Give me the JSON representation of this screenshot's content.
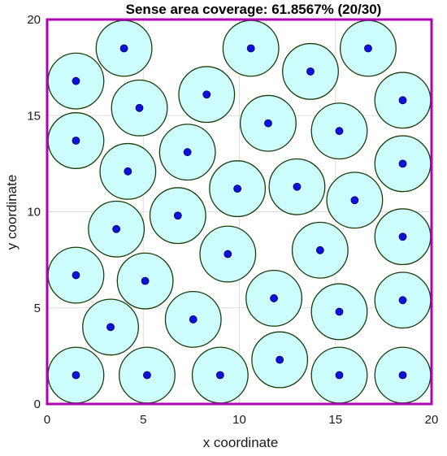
{
  "chart_data": {
    "type": "scatter",
    "title": "Sense area coverage: 61.8567% (20/30)",
    "xlabel": "x coordinate",
    "ylabel": "y coordinate",
    "xlim": [
      0,
      20
    ],
    "ylim": [
      0,
      20
    ],
    "xticks": [
      "0",
      "5",
      "10",
      "15",
      "20"
    ],
    "yticks": [
      "0",
      "5",
      "10",
      "15",
      "20"
    ],
    "grid": true,
    "sensing_radius": 1.45,
    "colors": {
      "frame": "#b000b5",
      "sensing_area_fill": "#ccfcfc",
      "sensing_area_stroke": "#1a3d0a",
      "node_fill": "#1010dd",
      "node_stroke": "#000060",
      "grid": "#dddddd"
    },
    "nodes": [
      {
        "x": 4.0,
        "y": 18.5
      },
      {
        "x": 10.6,
        "y": 18.5
      },
      {
        "x": 16.7,
        "y": 18.5
      },
      {
        "x": 13.7,
        "y": 17.3
      },
      {
        "x": 1.5,
        "y": 16.8
      },
      {
        "x": 8.3,
        "y": 16.1
      },
      {
        "x": 18.5,
        "y": 15.8
      },
      {
        "x": 4.8,
        "y": 15.4
      },
      {
        "x": 11.5,
        "y": 14.6
      },
      {
        "x": 15.2,
        "y": 14.2
      },
      {
        "x": 1.5,
        "y": 13.7
      },
      {
        "x": 7.3,
        "y": 13.1
      },
      {
        "x": 18.5,
        "y": 12.5
      },
      {
        "x": 4.2,
        "y": 12.1
      },
      {
        "x": 9.9,
        "y": 11.2
      },
      {
        "x": 13.0,
        "y": 11.3
      },
      {
        "x": 16.0,
        "y": 10.6
      },
      {
        "x": 6.8,
        "y": 9.8
      },
      {
        "x": 3.6,
        "y": 9.1
      },
      {
        "x": 18.5,
        "y": 8.7
      },
      {
        "x": 14.2,
        "y": 8.0
      },
      {
        "x": 9.4,
        "y": 7.8
      },
      {
        "x": 1.5,
        "y": 6.7
      },
      {
        "x": 5.1,
        "y": 6.4
      },
      {
        "x": 11.8,
        "y": 5.5
      },
      {
        "x": 18.5,
        "y": 5.4
      },
      {
        "x": 15.2,
        "y": 4.8
      },
      {
        "x": 7.6,
        "y": 4.4
      },
      {
        "x": 3.3,
        "y": 4.0
      },
      {
        "x": 12.1,
        "y": 2.3
      },
      {
        "x": 1.5,
        "y": 1.5
      },
      {
        "x": 5.2,
        "y": 1.5
      },
      {
        "x": 9.0,
        "y": 1.5
      },
      {
        "x": 15.2,
        "y": 1.5
      },
      {
        "x": 18.5,
        "y": 1.5
      }
    ]
  }
}
